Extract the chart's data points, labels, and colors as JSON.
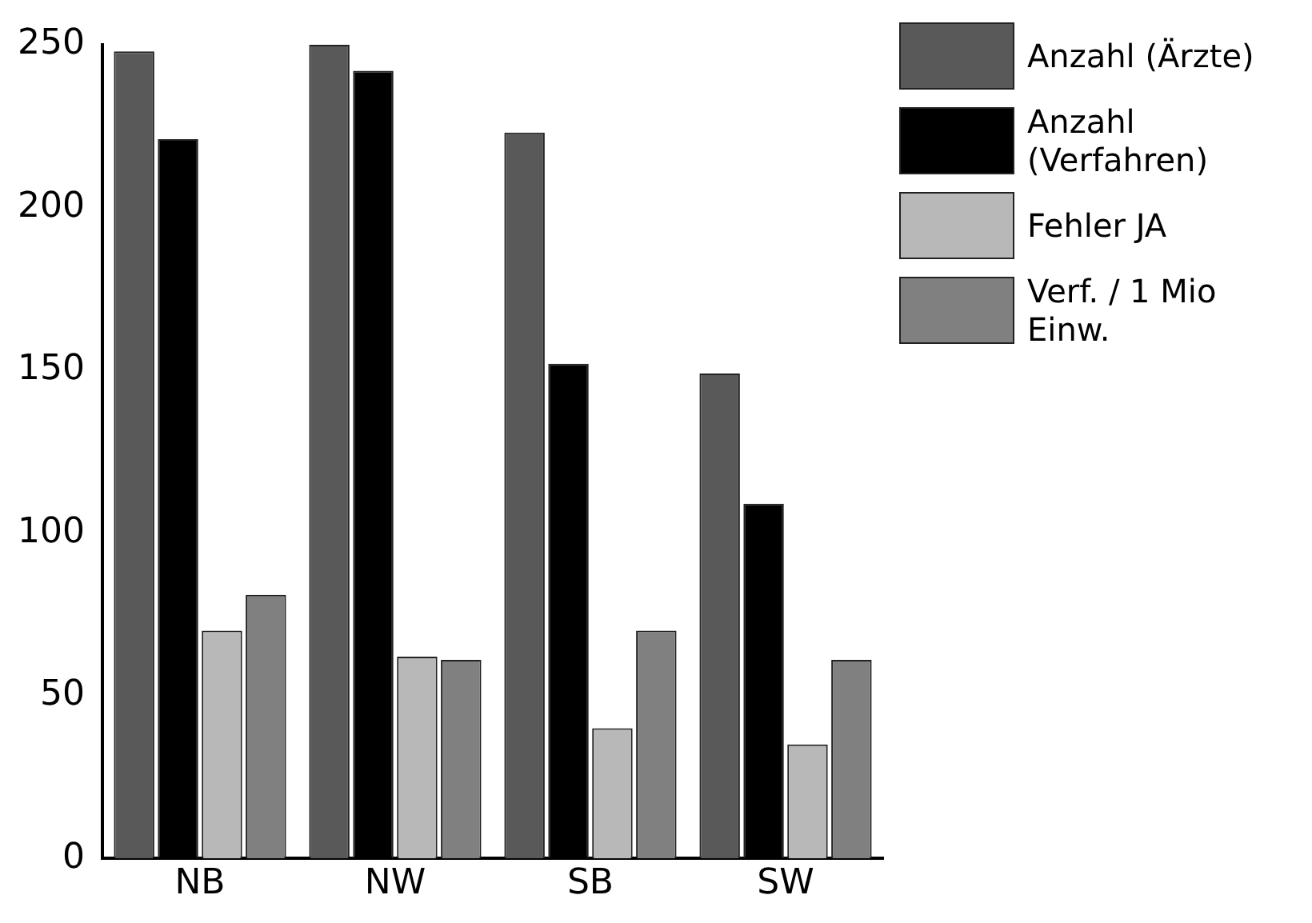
{
  "chart_data": {
    "type": "bar",
    "categories": [
      "NB",
      "NW",
      "SB",
      "SW"
    ],
    "series": [
      {
        "name": "Anzahl (Ärzte)",
        "color": "#595959",
        "values": [
          248,
          250,
          223,
          149
        ]
      },
      {
        "name": "Anzahl (Verfahren)",
        "color": "#000000",
        "values": [
          221,
          242,
          152,
          109
        ]
      },
      {
        "name": "Fehler JA",
        "color": "#b8b8b8",
        "values": [
          70,
          62,
          40,
          35
        ]
      },
      {
        "name": "Verf. / 1 Mio Einw.",
        "color": "#808080",
        "values": [
          81,
          61,
          70,
          61
        ]
      }
    ],
    "ylim": [
      0,
      250
    ],
    "yticks": [
      0,
      50,
      100,
      150,
      200,
      250
    ],
    "grid": false,
    "legend": "top right"
  }
}
